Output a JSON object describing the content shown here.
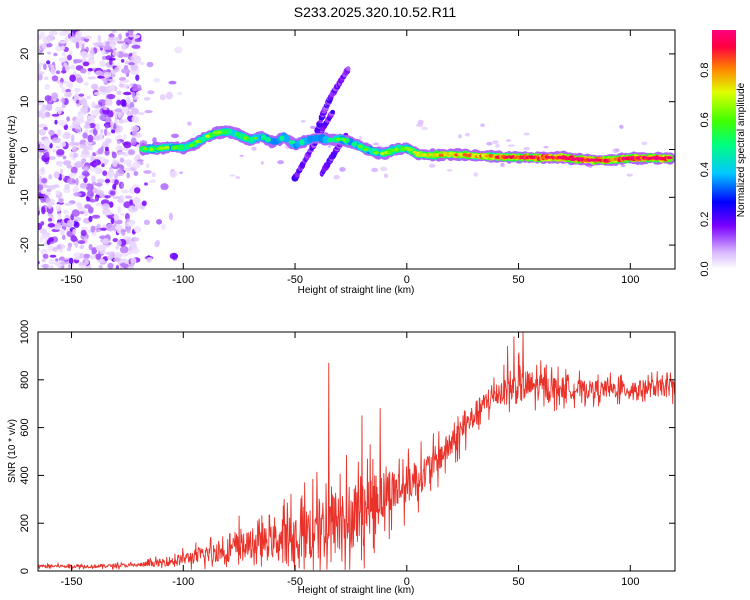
{
  "title": "S233.2025.320.10.52.R11",
  "chart_data": [
    {
      "type": "heatmap",
      "xlabel": "Height of straight line (km)",
      "ylabel": "Frequency (Hz)",
      "xlim": [
        -165,
        120
      ],
      "ylim": [
        -25,
        25
      ],
      "x_ticks": [
        -150,
        -100,
        -50,
        0,
        50,
        100
      ],
      "x_tick_labels": [
        "-150",
        "-100",
        "-50",
        "0",
        "50",
        "100"
      ],
      "y_ticks": [
        -20,
        -10,
        0,
        10,
        20
      ],
      "y_tick_labels": [
        "-20",
        "-10",
        "0",
        "10",
        "20"
      ],
      "colorbar": {
        "label": "Normalized spectral amplitude",
        "range": [
          0,
          1
        ],
        "ticks": [
          0.0,
          0.2,
          0.4,
          0.6,
          0.8
        ],
        "tick_labels": [
          "0.0",
          "0.2",
          "0.4",
          "0.6",
          "0.8"
        ]
      },
      "ridge": [
        {
          "x": -118,
          "y": 0.0,
          "a": 0.55
        },
        {
          "x": -112,
          "y": 0.2,
          "a": 0.6
        },
        {
          "x": -105,
          "y": 0.5,
          "a": 0.6
        },
        {
          "x": -100,
          "y": 0.3,
          "a": 0.55
        },
        {
          "x": -95,
          "y": 1.2,
          "a": 0.55
        },
        {
          "x": -90,
          "y": 2.5,
          "a": 0.6
        },
        {
          "x": -85,
          "y": 3.5,
          "a": 0.6
        },
        {
          "x": -80,
          "y": 3.8,
          "a": 0.55
        },
        {
          "x": -75,
          "y": 3.0,
          "a": 0.55
        },
        {
          "x": -70,
          "y": 2.0,
          "a": 0.55
        },
        {
          "x": -65,
          "y": 2.8,
          "a": 0.5
        },
        {
          "x": -60,
          "y": 1.5,
          "a": 0.5
        },
        {
          "x": -55,
          "y": 2.5,
          "a": 0.5
        },
        {
          "x": -50,
          "y": 1.0,
          "a": 0.5
        },
        {
          "x": -45,
          "y": 1.8,
          "a": 0.5
        },
        {
          "x": -40,
          "y": 2.5,
          "a": 0.45
        },
        {
          "x": -35,
          "y": 2.0,
          "a": 0.5
        },
        {
          "x": -30,
          "y": 2.2,
          "a": 0.55
        },
        {
          "x": -25,
          "y": 1.5,
          "a": 0.55
        },
        {
          "x": -20,
          "y": 0.5,
          "a": 0.55
        },
        {
          "x": -15,
          "y": -0.5,
          "a": 0.55
        },
        {
          "x": -10,
          "y": -0.8,
          "a": 0.6
        },
        {
          "x": -5,
          "y": 0.0,
          "a": 0.6
        },
        {
          "x": 0,
          "y": 0.3,
          "a": 0.6
        },
        {
          "x": 5,
          "y": -1.0,
          "a": 0.65
        },
        {
          "x": 10,
          "y": -1.2,
          "a": 0.7
        },
        {
          "x": 20,
          "y": -1.0,
          "a": 0.75
        },
        {
          "x": 30,
          "y": -1.3,
          "a": 0.8
        },
        {
          "x": 40,
          "y": -1.5,
          "a": 0.8
        },
        {
          "x": 50,
          "y": -1.6,
          "a": 0.85
        },
        {
          "x": 60,
          "y": -1.7,
          "a": 0.9
        },
        {
          "x": 70,
          "y": -1.7,
          "a": 0.95
        },
        {
          "x": 80,
          "y": -2.2,
          "a": 0.9
        },
        {
          "x": 90,
          "y": -2.3,
          "a": 0.85
        },
        {
          "x": 100,
          "y": -1.8,
          "a": 0.9
        },
        {
          "x": 110,
          "y": -1.8,
          "a": 0.9
        },
        {
          "x": 118,
          "y": -1.8,
          "a": 0.9
        }
      ],
      "branches": [
        {
          "x": [
            -50,
            -44,
            -38,
            -33
          ],
          "y": [
            -6,
            -1,
            4,
            8
          ]
        },
        {
          "x": [
            -40,
            -37,
            -34,
            -30,
            -26
          ],
          "y": [
            4,
            8,
            11,
            14,
            17
          ]
        },
        {
          "x": [
            -38,
            -34,
            -30,
            -27
          ],
          "y": [
            -5,
            -2,
            1,
            3
          ]
        }
      ],
      "noise_region": {
        "xmin": -165,
        "xmax": -120
      }
    },
    {
      "type": "line",
      "xlabel": "Height of straight line (km)",
      "ylabel": "SNR (10 * v/v)",
      "xlim": [
        -165,
        120
      ],
      "ylim": [
        0,
        1000
      ],
      "x_ticks": [
        -150,
        -100,
        -50,
        0,
        50,
        100
      ],
      "x_tick_labels": [
        "-150",
        "-100",
        "-50",
        "0",
        "50",
        "100"
      ],
      "y_ticks": [
        0,
        200,
        400,
        600,
        800,
        1000
      ],
      "y_tick_labels": [
        "0",
        "200",
        "400",
        "600",
        "800",
        "1000"
      ],
      "color": "#e8322a",
      "baseline": {
        "x": [
          -165,
          -140,
          -120,
          -110,
          -100,
          -90,
          -80,
          -70,
          -60,
          -50,
          -45,
          -40,
          -35,
          -30,
          -25,
          -20,
          -15,
          -10,
          -5,
          0,
          5,
          10,
          15,
          20,
          25,
          30,
          35,
          40,
          45,
          50,
          55,
          60,
          70,
          80,
          90,
          100,
          110,
          120
        ],
        "y": [
          20,
          20,
          25,
          35,
          50,
          70,
          90,
          110,
          125,
          140,
          160,
          175,
          190,
          210,
          230,
          260,
          290,
          320,
          340,
          360,
          390,
          430,
          480,
          530,
          590,
          650,
          700,
          740,
          760,
          770,
          775,
          770,
          765,
          760,
          760,
          760,
          765,
          770
        ]
      },
      "amplitude": {
        "x": [
          -165,
          -120,
          -100,
          -80,
          -70,
          -60,
          -50,
          -40,
          -30,
          -20,
          -10,
          0,
          20,
          40,
          50,
          60,
          80,
          120
        ],
        "y": [
          8,
          10,
          30,
          60,
          70,
          80,
          140,
          170,
          180,
          170,
          130,
          100,
          70,
          60,
          90,
          70,
          45,
          45
        ]
      },
      "spikes": [
        {
          "x": -35,
          "y": 870
        },
        {
          "x": 48,
          "y": 980
        },
        {
          "x": 52,
          "y": 1000
        },
        {
          "x": 45,
          "y": 940
        },
        {
          "x": -20,
          "y": 650
        },
        {
          "x": -12,
          "y": 680
        },
        {
          "x": -75,
          "y": 230
        }
      ]
    }
  ]
}
